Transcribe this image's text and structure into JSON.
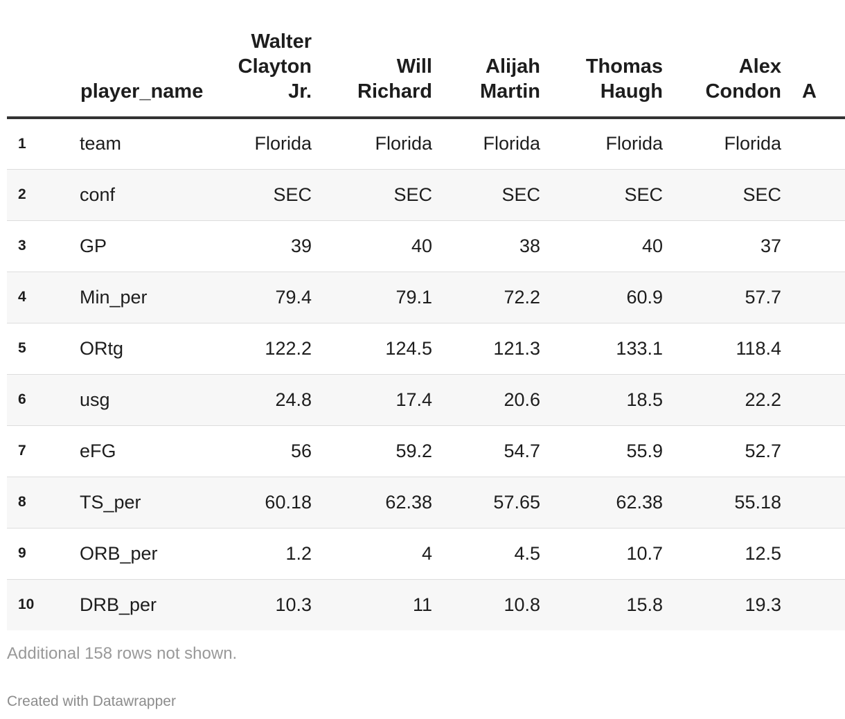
{
  "chart_data": {
    "type": "table",
    "columns": [
      "player_name",
      "Walter Clayton Jr.",
      "Will Richard",
      "Alijah Martin",
      "Thomas Haugh",
      "Alex Condon",
      "A"
    ],
    "header_lines": [
      [
        "Walter",
        "Clayton",
        "Jr."
      ],
      [
        "Will",
        "Richard"
      ],
      [
        "Alijah",
        "Martin"
      ],
      [
        "Thomas",
        "Haugh"
      ],
      [
        "Alex",
        "Condon"
      ],
      [
        "A"
      ]
    ],
    "rows": [
      {
        "index": "1",
        "stat": "team",
        "values": [
          "Florida",
          "Florida",
          "Florida",
          "Florida",
          "Florida"
        ]
      },
      {
        "index": "2",
        "stat": "conf",
        "values": [
          "SEC",
          "SEC",
          "SEC",
          "SEC",
          "SEC"
        ]
      },
      {
        "index": "3",
        "stat": "GP",
        "values": [
          "39",
          "40",
          "38",
          "40",
          "37"
        ]
      },
      {
        "index": "4",
        "stat": "Min_per",
        "values": [
          "79.4",
          "79.1",
          "72.2",
          "60.9",
          "57.7"
        ]
      },
      {
        "index": "5",
        "stat": "ORtg",
        "values": [
          "122.2",
          "124.5",
          "121.3",
          "133.1",
          "118.4"
        ]
      },
      {
        "index": "6",
        "stat": "usg",
        "values": [
          "24.8",
          "17.4",
          "20.6",
          "18.5",
          "22.2"
        ]
      },
      {
        "index": "7",
        "stat": "eFG",
        "values": [
          "56",
          "59.2",
          "54.7",
          "55.9",
          "52.7"
        ]
      },
      {
        "index": "8",
        "stat": "TS_per",
        "values": [
          "60.18",
          "62.38",
          "57.65",
          "62.38",
          "55.18"
        ]
      },
      {
        "index": "9",
        "stat": "ORB_per",
        "values": [
          "1.2",
          "4",
          "4.5",
          "10.7",
          "12.5"
        ]
      },
      {
        "index": "10",
        "stat": "DRB_per",
        "values": [
          "10.3",
          "11",
          "10.8",
          "15.8",
          "19.3"
        ]
      }
    ]
  },
  "footnote": "Additional 158 rows not shown.",
  "credit": "Created with Datawrapper",
  "colors": {
    "header_rule": "#333333",
    "row_alt": "#f7f7f7",
    "row_rule": "#dddddd",
    "footnote": "#999999"
  }
}
